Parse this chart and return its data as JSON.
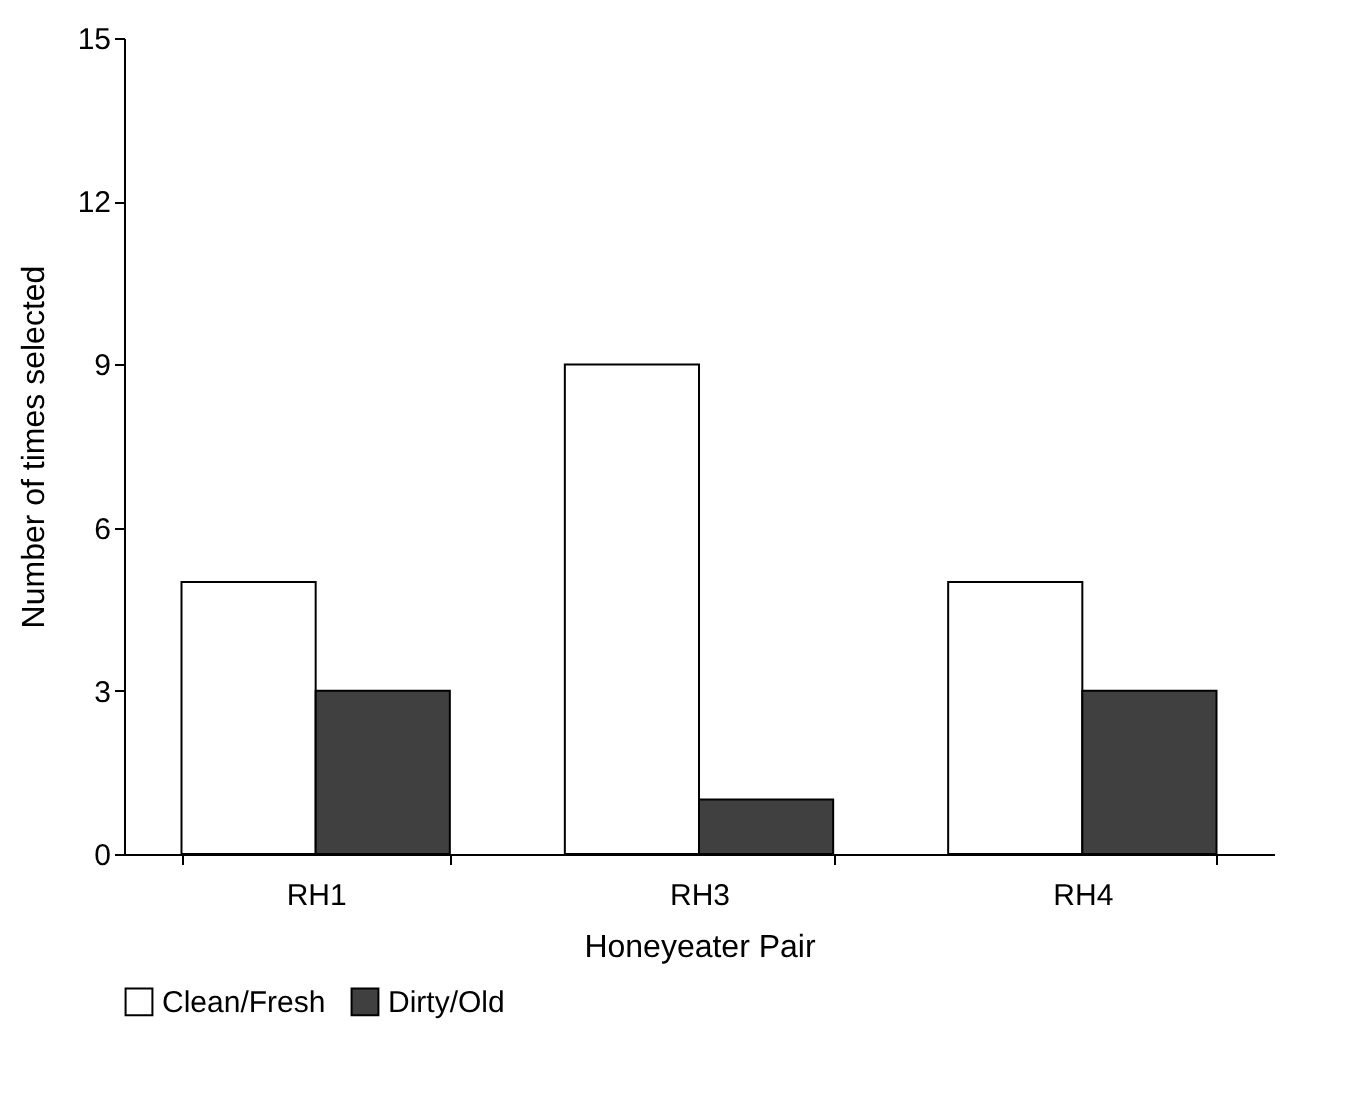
{
  "chart_data": {
    "type": "bar",
    "xlabel": "Honeyeater Pair",
    "ylabel": "Number of times selected",
    "categories": [
      "RH1",
      "RH3",
      "RH4"
    ],
    "series": [
      {
        "name": "Clean/Fresh",
        "color": "#ffffff",
        "values": [
          5,
          9,
          5
        ]
      },
      {
        "name": "Dirty/Old",
        "color": "#404040",
        "values": [
          3,
          1,
          3
        ]
      }
    ],
    "ylim": [
      0,
      15
    ],
    "yticks": [
      0,
      3,
      6,
      9,
      12,
      15
    ],
    "grid": false,
    "legend": "bottom"
  }
}
